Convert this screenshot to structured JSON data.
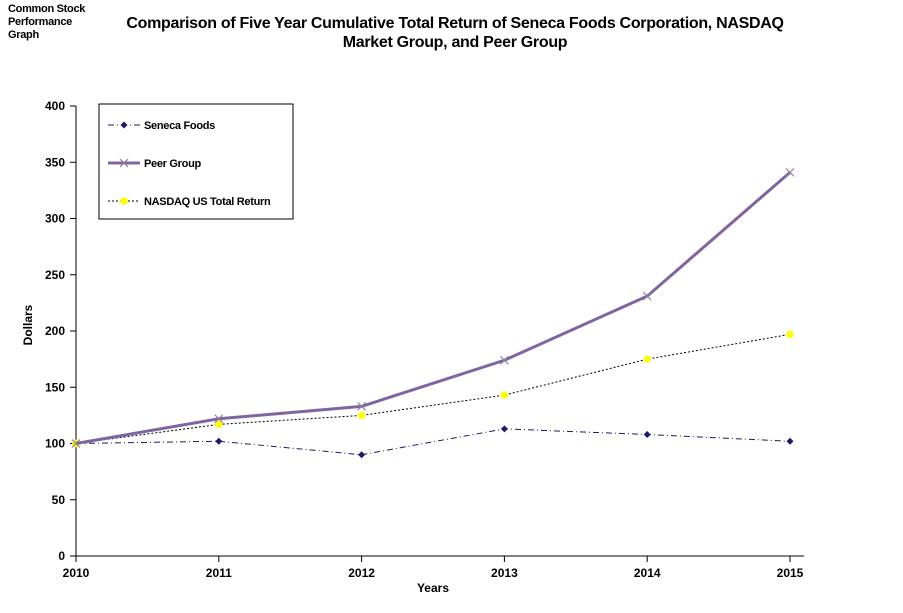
{
  "header": {
    "corner_note_lines": [
      "Common Stock",
      "Performance",
      "Graph"
    ],
    "title_lines": [
      "Comparison of Five Year Cumulative Total Return of Seneca Foods Corporation, NASDAQ",
      "Market Group, and Peer Group"
    ]
  },
  "chart_data": {
    "type": "line",
    "title": "Comparison of Five Year Cumulative Total Return of Seneca Foods Corporation, NASDAQ Market Group, and Peer Group",
    "xlabel": "Years",
    "ylabel": "Dollars",
    "categories": [
      "2010",
      "2011",
      "2012",
      "2013",
      "2014",
      "2015"
    ],
    "ylim": [
      0,
      400
    ],
    "yticks": [
      0,
      50,
      100,
      150,
      200,
      250,
      300,
      350,
      400
    ],
    "grid": false,
    "legend_position": "top-left",
    "series": [
      {
        "name": "Seneca Foods",
        "values": [
          100,
          102,
          90,
          113,
          108,
          102
        ],
        "color": "#1a1a6e",
        "marker": "diamond",
        "dash": "dash-dot"
      },
      {
        "name": "Peer Group",
        "values": [
          100,
          122,
          133,
          174,
          231,
          341
        ],
        "color": "#8064a2",
        "marker": "x",
        "dash": "solid"
      },
      {
        "name": "NASDAQ US Total Return",
        "values": [
          100,
          117,
          125,
          143,
          175,
          197
        ],
        "color": "#ffff00",
        "marker": "circle",
        "dash": "dotted"
      }
    ]
  }
}
